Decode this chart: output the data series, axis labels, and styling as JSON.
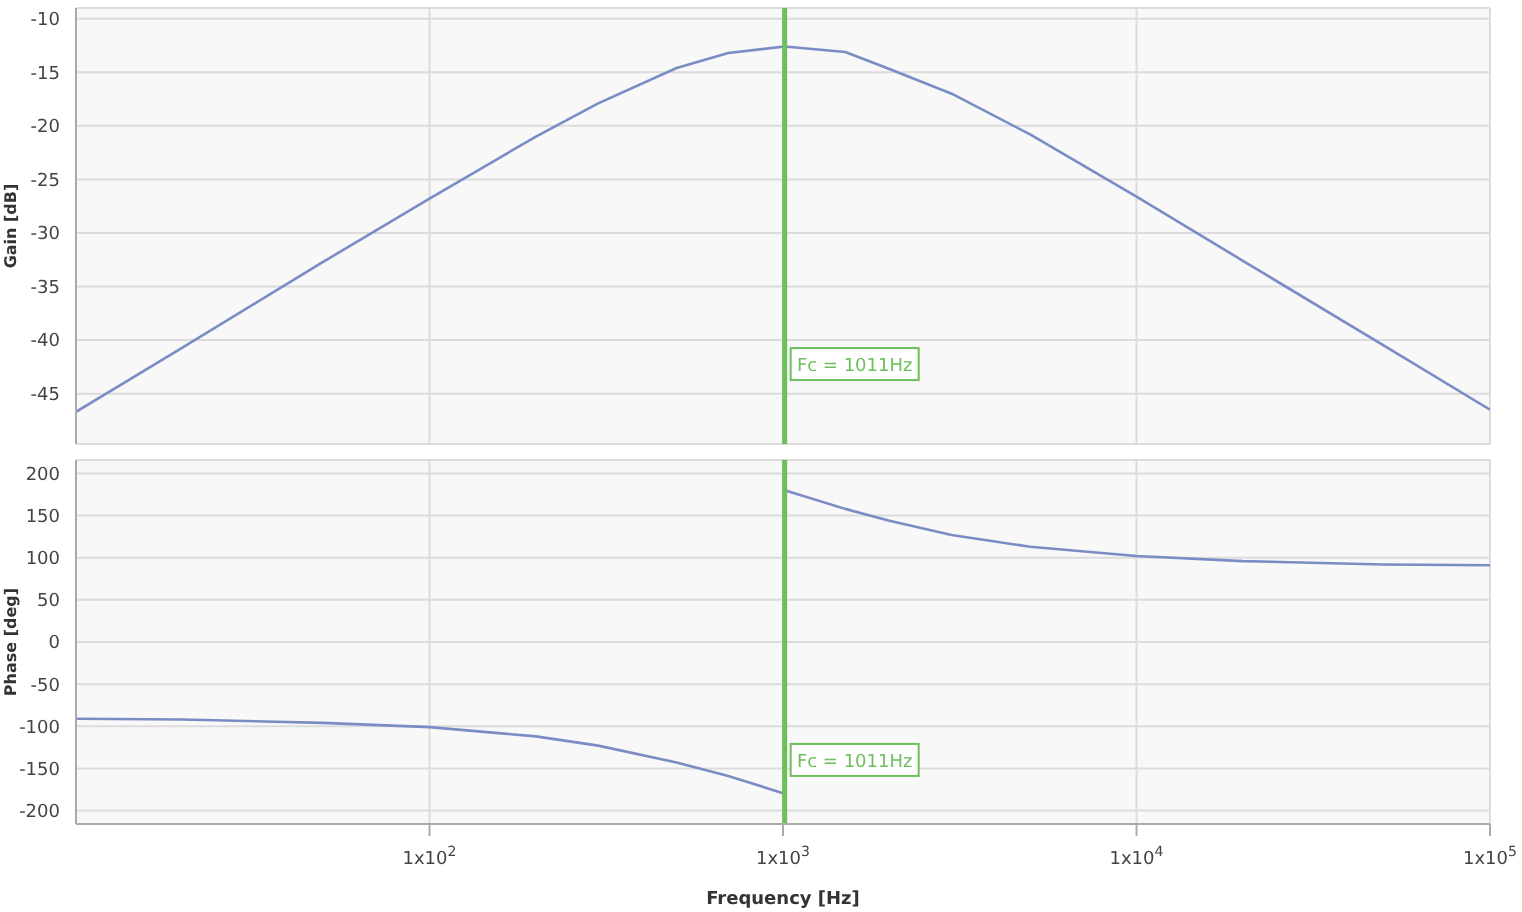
{
  "chart_data": [
    {
      "type": "line",
      "ylabel": "Gain [dB]",
      "xlim": [
        10,
        100000
      ],
      "xticks": [
        100,
        1000,
        10000,
        100000
      ],
      "ylim": [
        -49.7,
        -9
      ],
      "yticks": [
        -45,
        -40,
        -35,
        -30,
        -25,
        -20,
        -15,
        -10
      ],
      "log": "x",
      "grid": true,
      "legend": false,
      "tick_labels": "y",
      "x": [
        10,
        20,
        50,
        100,
        200,
        300,
        500,
        700,
        1011,
        1500,
        2000,
        3000,
        5000,
        10000,
        20000,
        50000,
        100000
      ],
      "series": [
        {
          "color": "#7b8cc4",
          "values": [
            -46.7,
            -40.7,
            -32.7,
            -26.8,
            -21.0,
            -17.9,
            -14.6,
            -13.2,
            -12.6,
            -13.1,
            -14.7,
            -17.0,
            -20.8,
            -26.6,
            -32.6,
            -40.5,
            -46.5
          ]
        }
      ],
      "ref_lines": [
        {
          "axis": "x",
          "value": 1011,
          "label": "Fc = 1011Hz",
          "color": "#6cbf5a"
        }
      ]
    },
    {
      "type": "line",
      "xlabel": "Frequency [Hz]",
      "ylabel": "Phase [deg]",
      "xlim": [
        10,
        100000
      ],
      "xticks": [
        {
          "value": 100,
          "label": "1x10$^{2}$"
        },
        {
          "value": 1000,
          "label": "1x10$^{3}$"
        },
        {
          "value": 10000,
          "label": "1x10$^{4}$"
        },
        {
          "value": 100000,
          "label": "1x10$^{5}$"
        }
      ],
      "ylim": [
        -216,
        216
      ],
      "yticks": [
        -200,
        -150,
        -100,
        -50,
        0,
        50,
        100,
        150,
        200
      ],
      "log": "x",
      "grid": true,
      "legend": false,
      "series": [
        {
          "color": "#7b8cc4",
          "x": [
            10,
            20,
            50,
            100,
            200,
            300,
            500,
            700,
            1011
          ],
          "values": [
            -91,
            -92,
            -96,
            -101,
            -112,
            -123,
            -143,
            -159,
            -180
          ]
        },
        {
          "color": "#7b8cc4",
          "x": [
            1011,
            1500,
            2000,
            3000,
            5000,
            10000,
            20000,
            50000,
            100000
          ],
          "values": [
            180,
            158,
            144,
            127,
            113,
            102,
            96,
            92,
            91
          ]
        }
      ],
      "ref_lines": [
        {
          "axis": "x",
          "value": 1011,
          "label": "Fc = 1011Hz",
          "color": "#6cbf5a"
        }
      ]
    }
  ]
}
